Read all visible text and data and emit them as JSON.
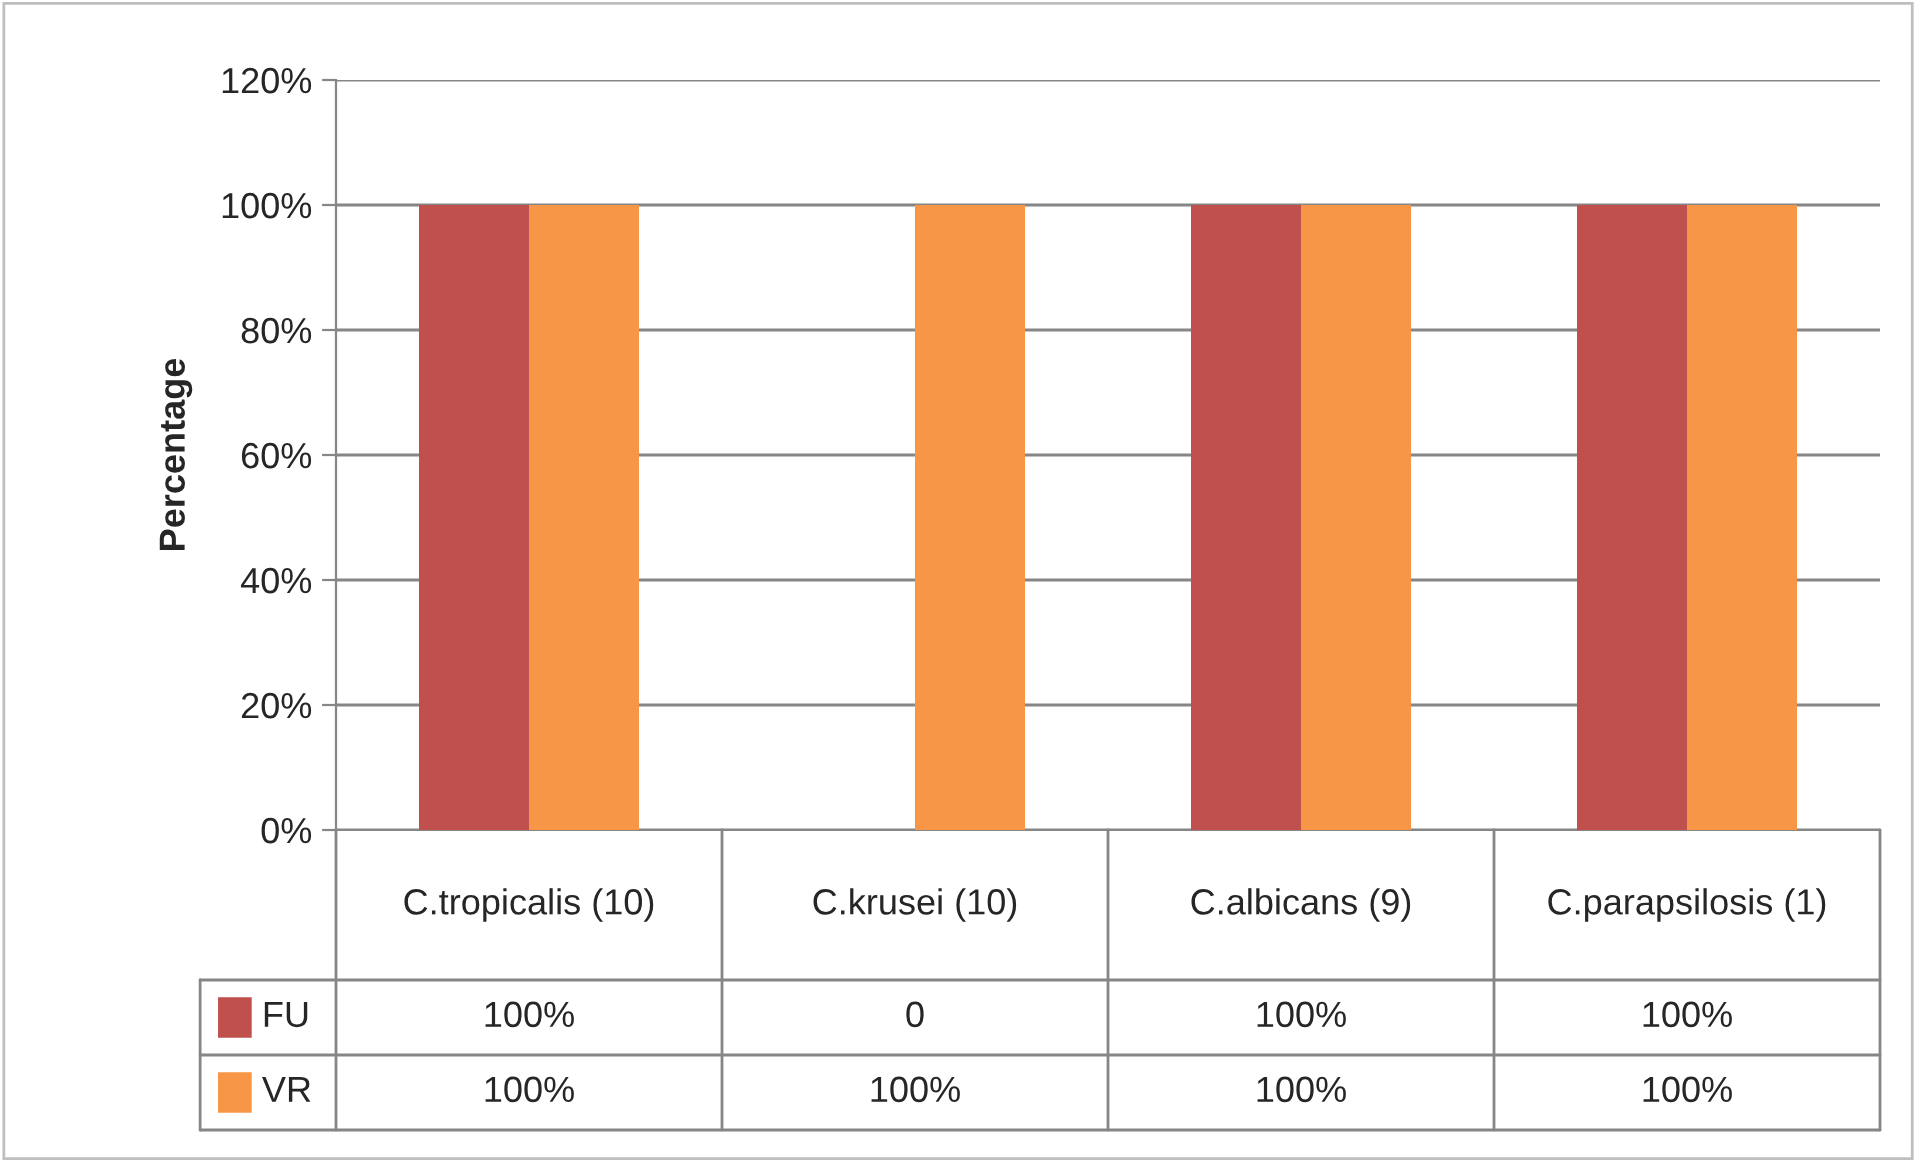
{
  "chart_data": {
    "type": "bar",
    "ylabel": "Percentage",
    "categories": [
      "C.tropicalis (10)",
      "C.krusei (10)",
      "C.albicans (9)",
      "C.parapsilosis (1)"
    ],
    "series": [
      {
        "name": "FU",
        "color": "#c0504d",
        "values": [
          100,
          0,
          100,
          100
        ],
        "value_labels": [
          "100%",
          "0",
          "100%",
          "100%"
        ]
      },
      {
        "name": "VR",
        "color": "#f79646",
        "values": [
          100,
          100,
          100,
          100
        ],
        "value_labels": [
          "100%",
          "100%",
          "100%",
          "100%"
        ]
      }
    ],
    "ylim": [
      0,
      120
    ],
    "yticks": [
      {
        "value": 0,
        "label": "0%"
      },
      {
        "value": 20,
        "label": "20%"
      },
      {
        "value": 40,
        "label": "40%"
      },
      {
        "value": 60,
        "label": "60%"
      },
      {
        "value": 80,
        "label": "80%"
      },
      {
        "value": 100,
        "label": "100%"
      },
      {
        "value": 120,
        "label": "120%"
      }
    ],
    "grid": "y",
    "legend": "bottom"
  }
}
